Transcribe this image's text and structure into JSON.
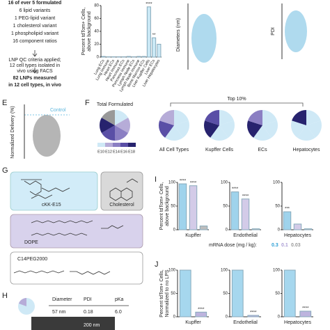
{
  "intro": {
    "lines": [
      "16 of ever 5 formulated",
      "6 lipid variants",
      "1 PEG-lipid variant",
      "1 cholesterol variant",
      "1 phospholipid variant",
      "16 component ratios"
    ],
    "qc": [
      "LNP QC criteria applied;",
      "12 cell types isolated in",
      "vivo using FACS"
    ],
    "result": [
      "82 LNPs measured",
      "in 12 cell types, in vivo"
    ]
  },
  "screen": {
    "ylabel": [
      "Percent tdTom+ Cells,",
      "above background"
    ],
    "color": "#cbe9f6",
    "categories": [
      "Lung ECs",
      "Lung Immune",
      "Heart ECs",
      "Heart Immune",
      "Pancreas ECs",
      "Pancreas Immune",
      "Lymph Node ECs",
      "Lymph Node Immune",
      "Bone Marrow ECs",
      "Liver Kupffer Cells",
      "Liver ECs",
      "Liver Hepatocytes"
    ],
    "values": [
      1,
      0.5,
      0.5,
      0.5,
      0.5,
      1,
      0.5,
      1,
      1,
      78,
      30,
      20
    ],
    "stars": [
      null,
      null,
      null,
      null,
      null,
      null,
      null,
      null,
      null,
      "****",
      "**",
      null
    ],
    "ylim": [
      0,
      80
    ],
    "yticks": [
      0,
      20,
      40,
      60,
      80
    ]
  },
  "size": {
    "diameter_label": "Diameters (nm)",
    "pdi_label": "PDI"
  },
  "panelE": {
    "letter": "E",
    "ylabel": "Normalized Delivery (%)",
    "control": "Control"
  },
  "panelF": {
    "letter": "F",
    "total": "Total Formulated",
    "top": "Top 10%",
    "legend": [
      "E10",
      "E12",
      "E14",
      "E16",
      "E18"
    ],
    "pies": [
      "All Cell Types",
      "Kupffer Cells",
      "ECs",
      "Hepatocytes"
    ]
  },
  "panelG": {
    "letter": "G",
    "molecules": [
      "cKK-E15",
      "Cholesterol",
      "DOPE",
      "C14PEG2000"
    ]
  },
  "panelH": {
    "letter": "H",
    "header": [
      "Diameter",
      "PDI",
      "pKa"
    ],
    "row": [
      "57 nm",
      "0.18",
      "6.0"
    ],
    "scale": "200 nm"
  },
  "panelI": {
    "letter": "I",
    "ylabel": [
      "Percent tdTom+ Cells,",
      "above background"
    ],
    "dose_label": "mRNA dose (mg / kg):",
    "doses": [
      "0.3",
      "0.1",
      "0.03"
    ],
    "colors": [
      "#9fd3ec",
      "#d3cbe8",
      "#bdbdbd"
    ],
    "charts": [
      {
        "name": "Kupffer",
        "values": [
          97,
          93,
          8
        ],
        "stars": [
          "****",
          "****",
          null
        ],
        "ylim": [
          0,
          100
        ],
        "yticks": [
          0,
          50,
          100
        ]
      },
      {
        "name": "Endothelial",
        "values": [
          80,
          65,
          2
        ],
        "stars": [
          "****",
          "****",
          null
        ],
        "ylim": [
          0,
          100
        ],
        "yticks": [
          0,
          50,
          100
        ]
      },
      {
        "name": "Hepatocytes",
        "values": [
          38,
          12,
          2
        ],
        "stars": [
          "***",
          null,
          null
        ],
        "ylim": [
          0,
          100
        ],
        "yticks": [
          0,
          50,
          100
        ]
      }
    ]
  },
  "panelJ": {
    "letter": "J",
    "ylabel": [
      "Percent tdTom+ Cells,",
      "Normalized to no LPS"
    ],
    "colors": [
      "#a6d7ee",
      "#bdb4de"
    ],
    "charts": [
      {
        "name": "Kupffer",
        "values": [
          100,
          10
        ],
        "stars": [
          null,
          "****"
        ],
        "ylim": [
          0,
          100
        ],
        "yticks": [
          0,
          50,
          100
        ]
      },
      {
        "name": "Endothelial",
        "values": [
          100,
          3
        ],
        "stars": [
          null,
          "****"
        ],
        "ylim": [
          0,
          100
        ],
        "yticks": [
          0,
          50,
          100
        ]
      },
      {
        "name": "Hepatocytes",
        "values": [
          100,
          12
        ],
        "stars": [
          null,
          "****"
        ],
        "ylim": [
          0,
          100
        ],
        "yticks": [
          0,
          50,
          100
        ]
      }
    ]
  }
}
